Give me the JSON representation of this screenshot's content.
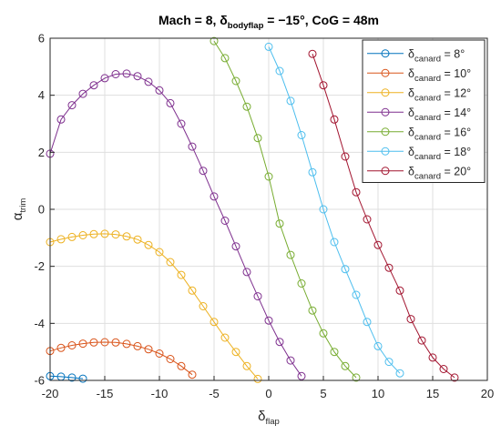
{
  "chart_data": {
    "type": "line",
    "title": {
      "prefix": "Mach = 8, ",
      "symbol": "δ",
      "subscript": "bodyflap",
      "middle": " = −15°, CoG = 48m"
    },
    "xlabel": {
      "symbol": "δ",
      "subscript": "flap"
    },
    "ylabel": {
      "symbol": "α",
      "subscript": "trim"
    },
    "xlim": [
      -20,
      20
    ],
    "ylim": [
      -6,
      6
    ],
    "xticks": [
      "-20",
      "-15",
      "-10",
      "-5",
      "0",
      "5",
      "10",
      "15",
      "20"
    ],
    "yticks": [
      "-6",
      "-4",
      "-2",
      "0",
      "2",
      "4",
      "6"
    ],
    "grid": true,
    "legend_position": "top-right",
    "marker": "circle",
    "series": [
      {
        "label": {
          "symbol": "δ",
          "subscript": "canard",
          "value": " = 8°"
        },
        "color": "#0072BD",
        "x": [
          -20,
          -19,
          -18,
          -17
        ],
        "y": [
          -5.85,
          -5.87,
          -5.9,
          -5.94
        ]
      },
      {
        "label": {
          "symbol": "δ",
          "subscript": "canard",
          "value": " = 10°"
        },
        "color": "#D95319",
        "x": [
          -20,
          -19,
          -18,
          -17,
          -16,
          -15,
          -14,
          -13,
          -12,
          -11,
          -10,
          -9,
          -8,
          -7
        ],
        "y": [
          -4.97,
          -4.86,
          -4.77,
          -4.71,
          -4.67,
          -4.66,
          -4.67,
          -4.72,
          -4.8,
          -4.91,
          -5.06,
          -5.25,
          -5.5,
          -5.8
        ]
      },
      {
        "label": {
          "symbol": "δ",
          "subscript": "canard",
          "value": " = 12°"
        },
        "color": "#EDB120",
        "x": [
          -20,
          -19,
          -18,
          -17,
          -16,
          -15,
          -14,
          -13,
          -12,
          -11,
          -10,
          -9,
          -8,
          -7,
          -6,
          -5,
          -4,
          -3,
          -2,
          -1
        ],
        "y": [
          -1.15,
          -1.05,
          -0.97,
          -0.91,
          -0.87,
          -0.86,
          -0.88,
          -0.95,
          -1.06,
          -1.25,
          -1.5,
          -1.85,
          -2.3,
          -2.85,
          -3.4,
          -3.95,
          -4.5,
          -5.0,
          -5.5,
          -5.95
        ]
      },
      {
        "label": {
          "symbol": "δ",
          "subscript": "canard",
          "value": " = 14°"
        },
        "color": "#7E2F8E",
        "x": [
          -20,
          -19,
          -18,
          -17,
          -16,
          -15,
          -14,
          -13,
          -12,
          -11,
          -10,
          -9,
          -8,
          -7,
          -6,
          -5,
          -4,
          -3,
          -2,
          -1,
          0,
          1,
          2,
          3
        ],
        "y": [
          1.95,
          3.15,
          3.65,
          4.05,
          4.35,
          4.6,
          4.74,
          4.76,
          4.67,
          4.47,
          4.17,
          3.72,
          3.0,
          2.2,
          1.35,
          0.45,
          -0.4,
          -1.3,
          -2.2,
          -3.05,
          -3.9,
          -4.65,
          -5.3,
          -5.85
        ]
      },
      {
        "label": {
          "symbol": "δ",
          "subscript": "canard",
          "value": " = 16°"
        },
        "color": "#77AC30",
        "x": [
          -5,
          -4,
          -3,
          -2,
          -1,
          0,
          1,
          2,
          3,
          4,
          5,
          6,
          7,
          8
        ],
        "y": [
          5.9,
          5.3,
          4.5,
          3.6,
          2.5,
          1.15,
          -0.5,
          -1.6,
          -2.6,
          -3.55,
          -4.35,
          -5.0,
          -5.5,
          -5.9
        ]
      },
      {
        "label": {
          "symbol": "δ",
          "subscript": "canard",
          "value": " = 18°"
        },
        "color": "#4DBEEE",
        "x": [
          0,
          1,
          2,
          3,
          4,
          5,
          6,
          7,
          8,
          9,
          10,
          11,
          12
        ],
        "y": [
          5.7,
          4.85,
          3.8,
          2.6,
          1.3,
          0.0,
          -1.15,
          -2.1,
          -3.0,
          -3.95,
          -4.8,
          -5.35,
          -5.75
        ]
      },
      {
        "label": {
          "symbol": "δ",
          "subscript": "canard",
          "value": " = 20°"
        },
        "color": "#A2142F",
        "x": [
          4,
          5,
          6,
          7,
          8,
          9,
          10,
          11,
          12,
          13,
          14,
          15,
          16,
          17
        ],
        "y": [
          5.45,
          4.35,
          3.15,
          1.85,
          0.6,
          -0.35,
          -1.25,
          -2.05,
          -2.85,
          -3.85,
          -4.6,
          -5.2,
          -5.6,
          -5.9
        ]
      }
    ]
  }
}
